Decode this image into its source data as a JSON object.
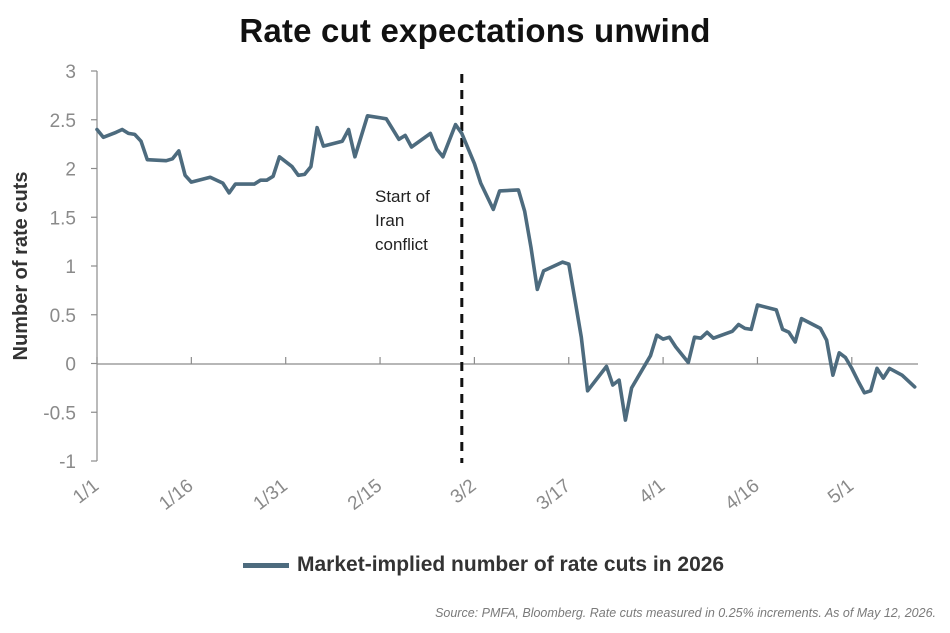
{
  "chart_data": {
    "type": "line",
    "title": "Rate cut expectations unwind",
    "ylabel": "Number of rate cuts",
    "xlabel": "",
    "ylim": [
      -1,
      3
    ],
    "yticks": [
      "3",
      "2.5",
      "2",
      "1.5",
      "1",
      "0.5",
      "0",
      "-0.5",
      "-1"
    ],
    "ytick_values": [
      3,
      2.5,
      2,
      1.5,
      1,
      0.5,
      0,
      -0.5,
      -1
    ],
    "xticks": [
      "1/1",
      "1/16",
      "1/31",
      "2/15",
      "3/2",
      "3/17",
      "4/1",
      "4/16",
      "5/1"
    ],
    "xtick_days": [
      0,
      15,
      30,
      45,
      60,
      75,
      90,
      105,
      120
    ],
    "x_range_days": [
      0,
      131
    ],
    "grid": false,
    "legend_position": "bottom",
    "series": [
      {
        "name": "Market-implied number of rate cuts in 2026",
        "color": "#4d6b7e",
        "points": [
          [
            0,
            2.4
          ],
          [
            1,
            2.32
          ],
          [
            3,
            2.37
          ],
          [
            4,
            2.4
          ],
          [
            5,
            2.36
          ],
          [
            6,
            2.35
          ],
          [
            7,
            2.28
          ],
          [
            8,
            2.09
          ],
          [
            11,
            2.08
          ],
          [
            12,
            2.1
          ],
          [
            13,
            2.18
          ],
          [
            14,
            1.93
          ],
          [
            15,
            1.86
          ],
          [
            18,
            1.91
          ],
          [
            20,
            1.85
          ],
          [
            21,
            1.75
          ],
          [
            22,
            1.84
          ],
          [
            25,
            1.84
          ],
          [
            26,
            1.88
          ],
          [
            27,
            1.88
          ],
          [
            28,
            1.92
          ],
          [
            29,
            2.12
          ],
          [
            31,
            2.02
          ],
          [
            32,
            1.93
          ],
          [
            33,
            1.94
          ],
          [
            34,
            2.02
          ],
          [
            35,
            2.42
          ],
          [
            36,
            2.23
          ],
          [
            39,
            2.28
          ],
          [
            40,
            2.4
          ],
          [
            41,
            2.12
          ],
          [
            43,
            2.54
          ],
          [
            46,
            2.51
          ],
          [
            48,
            2.3
          ],
          [
            49,
            2.34
          ],
          [
            50,
            2.22
          ],
          [
            53,
            2.36
          ],
          [
            54,
            2.2
          ],
          [
            55,
            2.12
          ],
          [
            57,
            2.45
          ],
          [
            58,
            2.36
          ],
          [
            60,
            2.05
          ],
          [
            61,
            1.85
          ],
          [
            63,
            1.58
          ],
          [
            64,
            1.77
          ],
          [
            67,
            1.78
          ],
          [
            68,
            1.56
          ],
          [
            69,
            1.19
          ],
          [
            70,
            0.76
          ],
          [
            71,
            0.95
          ],
          [
            74,
            1.04
          ],
          [
            75,
            1.02
          ],
          [
            76,
            0.65
          ],
          [
            77,
            0.27
          ],
          [
            78,
            -0.28
          ],
          [
            81,
            -0.03
          ],
          [
            82,
            -0.22
          ],
          [
            83,
            -0.17
          ],
          [
            84,
            -0.58
          ],
          [
            85,
            -0.25
          ],
          [
            88,
            0.08
          ],
          [
            89,
            0.29
          ],
          [
            90,
            0.25
          ],
          [
            91,
            0.27
          ],
          [
            92,
            0.17
          ],
          [
            94,
            0.01
          ],
          [
            95,
            0.27
          ],
          [
            96,
            0.26
          ],
          [
            97,
            0.32
          ],
          [
            98,
            0.26
          ],
          [
            101,
            0.33
          ],
          [
            102,
            0.4
          ],
          [
            103,
            0.36
          ],
          [
            104,
            0.35
          ],
          [
            105,
            0.6
          ],
          [
            108,
            0.55
          ],
          [
            109,
            0.35
          ],
          [
            110,
            0.32
          ],
          [
            111,
            0.22
          ],
          [
            112,
            0.46
          ],
          [
            115,
            0.36
          ],
          [
            116,
            0.24
          ],
          [
            117,
            -0.12
          ],
          [
            118,
            0.11
          ],
          [
            119,
            0.06
          ],
          [
            120,
            -0.05
          ],
          [
            121,
            -0.18
          ],
          [
            122,
            -0.3
          ],
          [
            123,
            -0.28
          ],
          [
            124,
            -0.05
          ],
          [
            125,
            -0.15
          ],
          [
            126,
            -0.05
          ],
          [
            128,
            -0.12
          ],
          [
            130,
            -0.24
          ]
        ]
      }
    ],
    "annotations": [
      {
        "x_day": 58,
        "label_lines": [
          "Start of",
          "Iran",
          "conflict"
        ],
        "style": "dashed-vertical"
      }
    ]
  },
  "source_note": "Source: PMFA, Bloomberg. Rate cuts measured in 0.25% increments. As of May 12, 2026."
}
